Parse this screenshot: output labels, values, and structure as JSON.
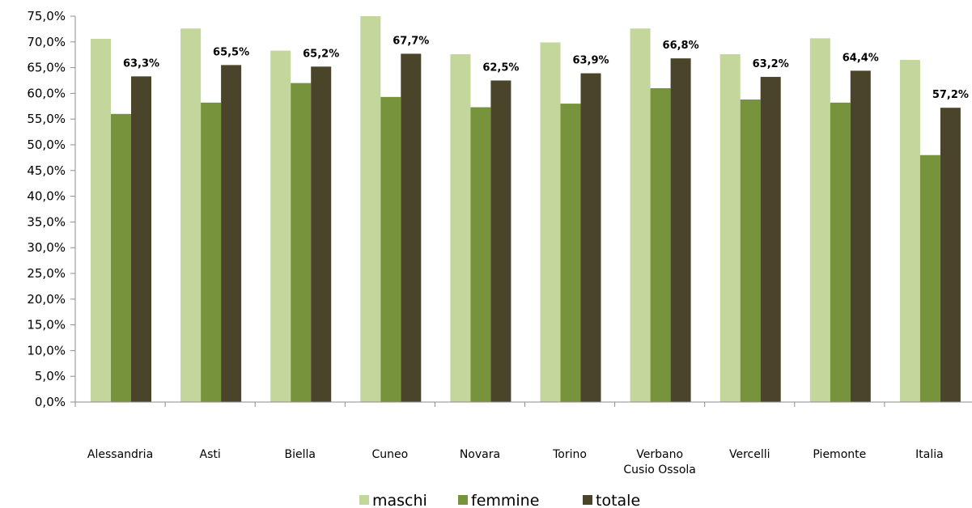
{
  "chart_data": {
    "type": "bar",
    "categories": [
      [
        "Alessandria"
      ],
      [
        "Asti"
      ],
      [
        "Biella"
      ],
      [
        "Cuneo"
      ],
      [
        "Novara"
      ],
      [
        "Torino"
      ],
      [
        "Verbano",
        "Cusio Ossola"
      ],
      [
        "Vercelli"
      ],
      [
        "Piemonte"
      ],
      [
        "Italia"
      ]
    ],
    "series": [
      {
        "name": "maschi",
        "color": "#c3d69b",
        "values": [
          70.6,
          72.6,
          68.3,
          75.0,
          67.6,
          69.9,
          72.6,
          67.6,
          70.7,
          66.5
        ]
      },
      {
        "name": "femmine",
        "color": "#77933c",
        "values": [
          56.0,
          58.2,
          62.0,
          59.3,
          57.3,
          58.0,
          61.0,
          58.8,
          58.2,
          48.0
        ]
      },
      {
        "name": "totale",
        "color": "#4a452a",
        "values": [
          63.3,
          65.5,
          65.2,
          67.7,
          62.5,
          63.9,
          66.8,
          63.2,
          64.4,
          57.2
        ]
      }
    ],
    "data_labels": {
      "series": "totale",
      "labels": [
        "63,3%",
        "65,5%",
        "65,2%",
        "67,7%",
        "62,5%",
        "63,9%",
        "66,8%",
        "63,2%",
        "64,4%",
        "57,2%"
      ]
    },
    "y_ticks": [
      "0,0%",
      "5,0%",
      "10,0%",
      "15,0%",
      "20,0%",
      "25,0%",
      "30,0%",
      "35,0%",
      "40,0%",
      "45,0%",
      "50,0%",
      "55,0%",
      "60,0%",
      "65,0%",
      "70,0%",
      "75,0%"
    ],
    "ylim": [
      0,
      75
    ],
    "y_step": 5,
    "grid": false,
    "legend_position": "bottom-center"
  }
}
